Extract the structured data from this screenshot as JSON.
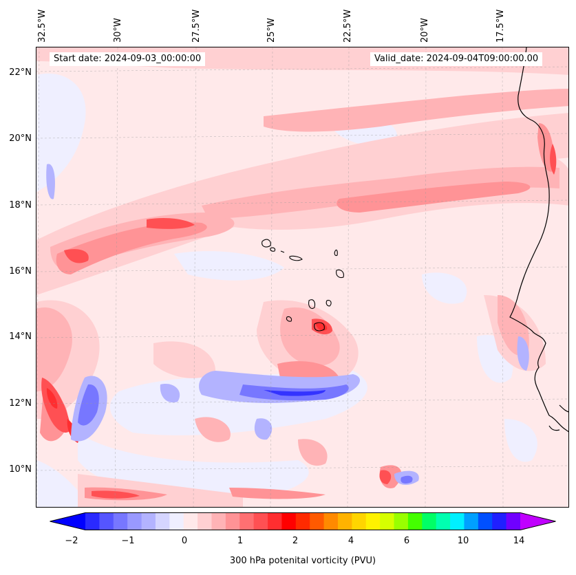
{
  "header": {
    "start_date": "Start date: 2024-09-03_00:00:00",
    "valid_date": "Valid_date: 2024-09-04T09:00:00.00"
  },
  "axes": {
    "longitudes": [
      "32.5°W",
      "30°W",
      "27.5°W",
      "25°W",
      "22.5°W",
      "20°W",
      "17.5°W"
    ],
    "latitudes": [
      "22°N",
      "20°N",
      "18°N",
      "16°N",
      "14°N",
      "12°N",
      "10°N"
    ]
  },
  "colorbar": {
    "label": "300 hPa potenital vorticity (PVU)",
    "ticks": [
      "−2",
      "−1",
      "0",
      "1",
      "2",
      "4",
      "6",
      "10",
      "14"
    ],
    "colors": [
      "#0000ff",
      "#2a2aff",
      "#5555ff",
      "#7777ff",
      "#9999ff",
      "#b3b3ff",
      "#d5d5ff",
      "#efefff",
      "#ffe9ea",
      "#ffd0d2",
      "#ffb3b6",
      "#ff9396",
      "#ff7072",
      "#ff5053",
      "#ff2e30",
      "#ff0000",
      "#ff2a00",
      "#ff5a00",
      "#ff8a00",
      "#ffb300",
      "#ffd500",
      "#fff200",
      "#d6ff00",
      "#99ff00",
      "#44ff00",
      "#00ff66",
      "#00ffb0",
      "#00f0ff",
      "#00a0ff",
      "#0050ff",
      "#2020ff",
      "#7000ff",
      "#c000ff"
    ]
  },
  "field": {
    "variable": "300 hPa potential vorticity",
    "units": "PVU",
    "colors": {
      "background": "#ffe9ea",
      "light_pink": "#ffd0d2",
      "pink": "#ffb3b6",
      "salmon": "#ff9396",
      "red": "#ff5053",
      "deep_red": "#ff2e30",
      "pale_blue": "#efefff",
      "light_blue": "#b3b3ff",
      "blue": "#7777ff",
      "deep_blue": "#3333ff"
    }
  }
}
